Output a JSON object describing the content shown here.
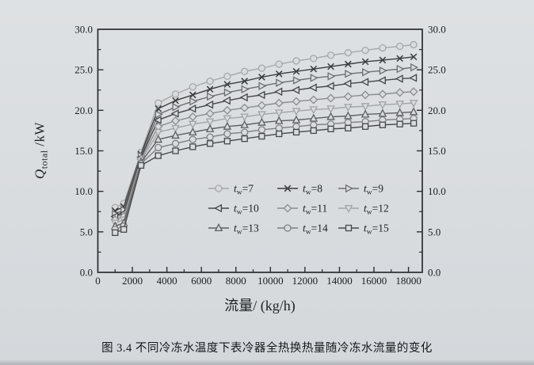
{
  "page": {
    "caption": "图 3.4  不同冷冻水温度下表冷器全热换热量随冷冻水流量的变化",
    "background_color": "#d9dcdf",
    "axis_color": "#2b2c2e",
    "text_color": "#1c1e20"
  },
  "chart_data": {
    "type": "line",
    "title": "",
    "xlabel": "流量/ (kg/h)",
    "ylabel": {
      "symbol": "Q",
      "subscript": "total",
      "unit": " /kW"
    },
    "x_axis": {
      "min": 0,
      "max": 18800,
      "major_tick": 2000,
      "minor_tick": 1000,
      "tick_labels": [
        "0",
        "2000",
        "4000",
        "6000",
        "8000",
        "10000",
        "12000",
        "14000",
        "16000",
        "18000"
      ]
    },
    "y_axis": {
      "min": 0,
      "max": 30,
      "major_tick": 5,
      "minor_tick": 2.5,
      "tick_labels": [
        "0.0",
        "5.0",
        "10.0",
        "15.0",
        "20.0",
        "25.0",
        "30.0"
      ],
      "mirrored_right_labels": true
    },
    "grid": false,
    "legend_position": "inside-lower-right",
    "x": [
      1000,
      1500,
      2500,
      3500,
      4500,
      5500,
      6500,
      7500,
      8500,
      9500,
      10500,
      11500,
      12500,
      13500,
      14500,
      15500,
      16500,
      17500,
      18300
    ],
    "series": [
      {
        "t_value": 7,
        "name": "tw=7",
        "marker": "circle",
        "color": "#a6a7a8",
        "values": [
          8.0,
          8.5,
          14.8,
          20.9,
          22.0,
          22.9,
          23.6,
          24.2,
          24.8,
          25.2,
          25.7,
          26.1,
          26.4,
          26.8,
          27.1,
          27.4,
          27.7,
          27.9,
          28.1
        ]
      },
      {
        "t_value": 8,
        "name": "tw=8",
        "marker": "x",
        "color": "#3c3d3e",
        "values": [
          7.6,
          8.1,
          14.6,
          20.2,
          21.2,
          21.9,
          22.6,
          23.2,
          23.6,
          24.1,
          24.5,
          24.8,
          25.1,
          25.4,
          25.7,
          26.0,
          26.2,
          26.4,
          26.6
        ]
      },
      {
        "t_value": 9,
        "name": "tw=9",
        "marker": "triangle-right",
        "color": "#6d6e70",
        "values": [
          7.2,
          7.7,
          14.4,
          19.5,
          20.4,
          21.1,
          21.7,
          22.2,
          22.6,
          23.0,
          23.4,
          23.7,
          24.0,
          24.2,
          24.5,
          24.7,
          24.9,
          25.1,
          25.3
        ]
      },
      {
        "t_value": 10,
        "name": "tw=10",
        "marker": "triangle-left",
        "color": "#454647",
        "values": [
          6.9,
          7.3,
          14.2,
          18.8,
          19.6,
          20.2,
          20.7,
          21.2,
          21.6,
          21.9,
          22.3,
          22.5,
          22.8,
          23.0,
          23.3,
          23.5,
          23.7,
          23.9,
          24.0
        ]
      },
      {
        "t_value": 11,
        "name": "tw=11",
        "marker": "diamond",
        "color": "#8b8c8e",
        "values": [
          6.5,
          6.9,
          14.0,
          18.0,
          18.7,
          19.2,
          19.6,
          20.0,
          20.3,
          20.6,
          20.9,
          21.1,
          21.3,
          21.5,
          21.7,
          21.9,
          22.0,
          22.2,
          22.3
        ]
      },
      {
        "t_value": 12,
        "name": "tw=12",
        "marker": "triangle-down",
        "color": "#a2a3a5",
        "values": [
          6.1,
          6.5,
          13.8,
          17.3,
          17.8,
          18.3,
          18.6,
          19.0,
          19.2,
          19.5,
          19.7,
          19.9,
          20.1,
          20.2,
          20.4,
          20.5,
          20.7,
          20.8,
          20.9
        ]
      },
      {
        "t_value": 13,
        "name": "tw=13",
        "marker": "triangle-up",
        "color": "#5e5f61",
        "values": [
          5.7,
          6.1,
          13.6,
          16.4,
          16.9,
          17.3,
          17.7,
          18.0,
          18.2,
          18.5,
          18.7,
          18.8,
          19.0,
          19.2,
          19.3,
          19.5,
          19.6,
          19.7,
          19.8
        ]
      },
      {
        "t_value": 14,
        "name": "tw=14",
        "marker": "circle",
        "color": "#7e7f81",
        "values": [
          5.3,
          5.7,
          13.4,
          15.4,
          15.9,
          16.4,
          16.7,
          17.1,
          17.3,
          17.6,
          17.8,
          18.0,
          18.2,
          18.3,
          18.5,
          18.6,
          18.8,
          18.9,
          19.0
        ]
      },
      {
        "t_value": 15,
        "name": "tw=15",
        "marker": "square",
        "color": "#47484a",
        "values": [
          4.9,
          5.3,
          13.2,
          14.4,
          15.0,
          15.5,
          15.9,
          16.2,
          16.5,
          16.8,
          17.1,
          17.3,
          17.5,
          17.7,
          17.8,
          18.0,
          18.2,
          18.3,
          18.4
        ]
      }
    ]
  }
}
